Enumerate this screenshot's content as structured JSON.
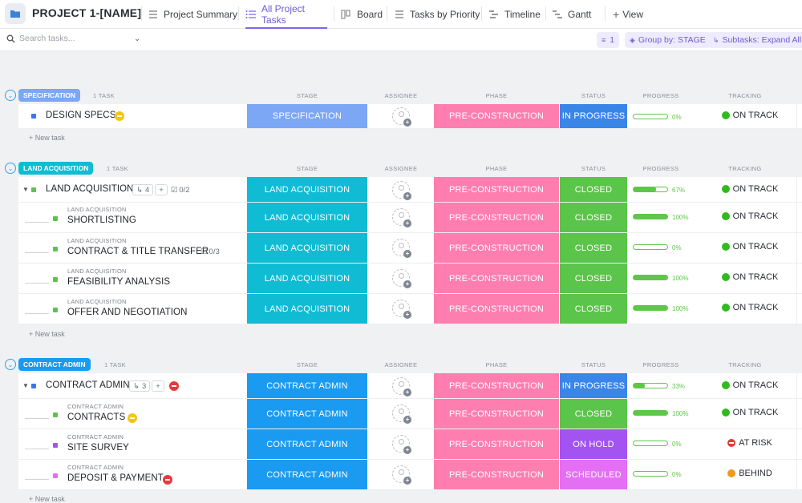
{
  "header": {
    "project_title": "PROJECT 1-[NAME]",
    "tabs": [
      {
        "label": "Project Summary",
        "active": false
      },
      {
        "label": "All Project Tasks",
        "active": true
      },
      {
        "label": "Board",
        "active": false
      },
      {
        "label": "Tasks by Priority",
        "active": false
      },
      {
        "label": "Timeline",
        "active": false
      },
      {
        "label": "Gantt",
        "active": false
      }
    ],
    "add_view_label": "View"
  },
  "toolbar": {
    "search_placeholder": "Search tasks...",
    "filter_count": "1",
    "group_by_label": "Group by: STAGE",
    "subtasks_label": "Subtasks: Expand All"
  },
  "columns": {
    "stage": "STAGE",
    "assignee": "ASSIGNEE",
    "phase": "PHASE",
    "status": "STATUS",
    "progress": "PROGRESS",
    "tracking": "TRACKING"
  },
  "colors": {
    "specification": "#7ba7f5",
    "land_acquisition": "#0fbcd4",
    "contract_admin": "#1a9af0",
    "pre_construction": "#ff7eb0",
    "in_progress": "#3a86e8",
    "closed": "#5bc44a",
    "on_hold": "#a354f0",
    "scheduled": "#e46ff5"
  },
  "new_task_label": "+ New task",
  "groups": {
    "spec": {
      "name": "SPECIFICATION",
      "count": "1 TASK",
      "rows": [
        {
          "name": "DESIGN SPECS",
          "stage": "SPECIFICATION",
          "phase": "PRE-CONSTRUCTION",
          "status": "IN PROGRESS",
          "progress": "0%",
          "tracking": "ON TRACK"
        }
      ]
    },
    "land": {
      "name": "LAND ACQUISITION",
      "count": "1 TASK",
      "rows": [
        {
          "name": "LAND ACQUISITION",
          "subtask_count": "4",
          "checklist": "0/2",
          "stage": "LAND ACQUISITION",
          "phase": "PRE-CONSTRUCTION",
          "status": "CLOSED",
          "progress": "67%",
          "tracking": "ON TRACK"
        },
        {
          "parent": "LAND ACQUISITION",
          "name": "SHORTLISTING",
          "stage": "LAND ACQUISITION",
          "phase": "PRE-CONSTRUCTION",
          "status": "CLOSED",
          "progress": "100%",
          "tracking": "ON TRACK"
        },
        {
          "parent": "LAND ACQUISITION",
          "name": "CONTRACT & TITLE TRANSFER",
          "checklist": "0/3",
          "stage": "LAND ACQUISITION",
          "phase": "PRE-CONSTRUCTION",
          "status": "CLOSED",
          "progress": "0%",
          "tracking": "ON TRACK"
        },
        {
          "parent": "LAND ACQUISITION",
          "name": "FEASIBILITY ANALYSIS",
          "stage": "LAND ACQUISITION",
          "phase": "PRE-CONSTRUCTION",
          "status": "CLOSED",
          "progress": "100%",
          "tracking": "ON TRACK"
        },
        {
          "parent": "LAND ACQUISITION",
          "name": "OFFER AND NEGOTIATION",
          "stage": "LAND ACQUISITION",
          "phase": "PRE-CONSTRUCTION",
          "status": "CLOSED",
          "progress": "100%",
          "tracking": "ON TRACK"
        }
      ]
    },
    "contract": {
      "name": "CONTRACT ADMIN",
      "count": "1 TASK",
      "rows": [
        {
          "name": "CONTRACT ADMIN",
          "subtask_count": "3",
          "stage": "CONTRACT ADMIN",
          "phase": "PRE-CONSTRUCTION",
          "status": "IN PROGRESS",
          "progress": "33%",
          "tracking": "ON TRACK"
        },
        {
          "parent": "CONTRACT ADMIN",
          "name": "CONTRACTS",
          "stage": "CONTRACT ADMIN",
          "phase": "PRE-CONSTRUCTION",
          "status": "CLOSED",
          "progress": "100%",
          "tracking": "ON TRACK"
        },
        {
          "parent": "CONTRACT ADMIN",
          "name": "SITE SURVEY",
          "stage": "CONTRACT ADMIN",
          "phase": "PRE-CONSTRUCTION",
          "status": "ON HOLD",
          "progress": "0%",
          "tracking": "AT RISK"
        },
        {
          "parent": "CONTRACT ADMIN",
          "name": "DEPOSIT & PAYMENT",
          "stage": "CONTRACT ADMIN",
          "phase": "PRE-CONSTRUCTION",
          "status": "SCHEDULED",
          "progress": "0%",
          "tracking": "BEHIND"
        }
      ]
    }
  }
}
